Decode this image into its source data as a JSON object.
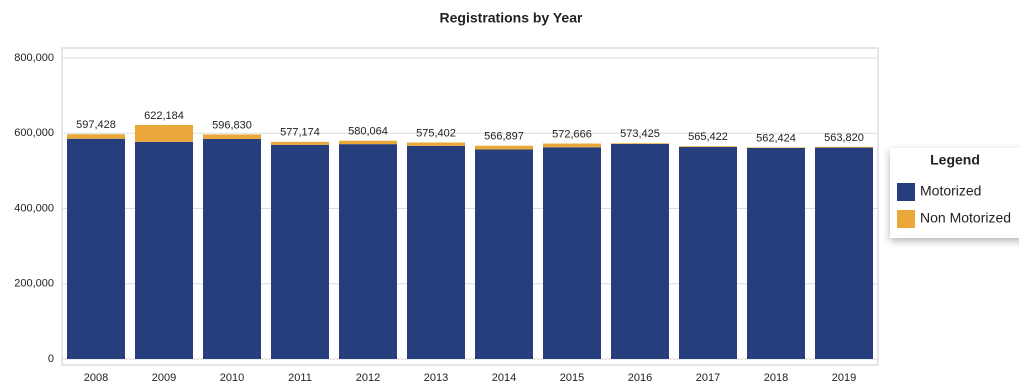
{
  "chart_data": {
    "type": "stacked-bar",
    "title": "Registrations by Year",
    "categories": [
      "2008",
      "2009",
      "2010",
      "2011",
      "2012",
      "2013",
      "2014",
      "2015",
      "2016",
      "2017",
      "2018",
      "2019"
    ],
    "series": [
      {
        "name": "Motorized",
        "color": "#263f7c",
        "values": [
          585428,
          577184,
          584830,
          569174,
          571064,
          566402,
          556897,
          562666,
          571425,
          563422,
          560924,
          561820
        ]
      },
      {
        "name": "Non Motorized",
        "color": "#eaa83a",
        "values": [
          12000,
          45000,
          12000,
          8000,
          9000,
          9000,
          10000,
          10000,
          2000,
          2000,
          1500,
          2000
        ]
      }
    ],
    "totals": [
      597428,
      622184,
      596830,
      577174,
      580064,
      575402,
      566897,
      572666,
      573425,
      565422,
      562424,
      563820
    ],
    "total_labels": [
      "597,428",
      "622,184",
      "596,830",
      "577,174",
      "580,064",
      "575,402",
      "566,897",
      "572,666",
      "573,425",
      "565,422",
      "562,424",
      "563,820"
    ],
    "ylim": [
      0,
      800000
    ],
    "yticks": [
      0,
      {
        "value": 200000,
        "label": "200,000"
      },
      {
        "value": 400000,
        "label": "400,000"
      },
      {
        "value": 600000,
        "label": "600,000"
      },
      {
        "value": 800000,
        "label": "800,000"
      }
    ],
    "grid": true,
    "legend_title": "Legend",
    "legend_position": "right"
  }
}
